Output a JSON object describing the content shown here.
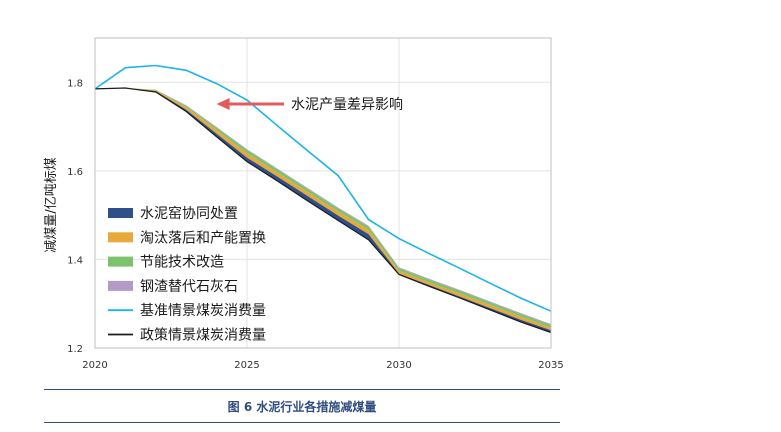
{
  "caption": "图 6  水泥行业各措施减煤量",
  "chart_data": {
    "type": "area",
    "ylabel": "减煤量/亿吨标煤",
    "xlabel": "",
    "xlim": [
      2020,
      2035
    ],
    "ylim": [
      1.2,
      1.9
    ],
    "xticks": [
      2020,
      2025,
      2030,
      2035
    ],
    "yticks": [
      1.2,
      1.4,
      1.6,
      1.8
    ],
    "grid": true,
    "legend_position": "center-left",
    "annotation": {
      "text": "水泥产量差异影响",
      "arrow_color": "#e35b5b",
      "arrow_to_year": 2024
    },
    "x": [
      2020,
      2021,
      2022,
      2023,
      2024,
      2025,
      2026,
      2027,
      2028,
      2029,
      2030,
      2031,
      2032,
      2033,
      2034,
      2035
    ],
    "series": [
      {
        "name": "基准情景煤炭消费量",
        "kind": "line",
        "color": "#1ab4e8",
        "values": [
          1.785,
          1.833,
          1.838,
          1.827,
          1.797,
          1.76,
          1.702,
          1.645,
          1.589,
          1.49,
          1.447,
          1.413,
          1.38,
          1.346,
          1.313,
          1.283
        ]
      },
      {
        "name": "钢渣替代石灰石",
        "kind": "area",
        "color": "#b49ac6",
        "values": [
          1.785,
          1.787,
          1.783,
          1.748,
          1.699,
          1.649,
          1.605,
          1.561,
          1.517,
          1.476,
          1.382,
          1.356,
          1.331,
          1.305,
          1.279,
          1.254
        ]
      },
      {
        "name": "节能技术改造",
        "kind": "area",
        "color": "#7dc36b",
        "values": [
          1.785,
          1.787,
          1.783,
          1.747,
          1.697,
          1.647,
          1.603,
          1.559,
          1.515,
          1.474,
          1.38,
          1.354,
          1.329,
          1.303,
          1.277,
          1.252
        ]
      },
      {
        "name": "淘汰落后和产能置换",
        "kind": "area",
        "color": "#e8a83a",
        "values": [
          1.785,
          1.787,
          1.782,
          1.744,
          1.692,
          1.64,
          1.596,
          1.552,
          1.508,
          1.467,
          1.374,
          1.348,
          1.323,
          1.297,
          1.271,
          1.246
        ]
      },
      {
        "name": "水泥窑协同处置",
        "kind": "area",
        "color": "#2e4f8a",
        "values": [
          1.785,
          1.787,
          1.78,
          1.738,
          1.684,
          1.63,
          1.587,
          1.543,
          1.499,
          1.457,
          1.368,
          1.342,
          1.316,
          1.29,
          1.264,
          1.24
        ]
      },
      {
        "name": "政策情景煤炭消费量",
        "kind": "line",
        "color": "#1c1c1c",
        "values": [
          1.785,
          1.787,
          1.778,
          1.734,
          1.677,
          1.621,
          1.577,
          1.532,
          1.488,
          1.444,
          1.366,
          1.339,
          1.313,
          1.286,
          1.259,
          1.235
        ]
      }
    ],
    "legend": [
      {
        "label": "水泥窑协同处置",
        "color": "#2e4f8a",
        "kind": "area"
      },
      {
        "label": "淘汰落后和产能置换",
        "color": "#e8a83a",
        "kind": "area"
      },
      {
        "label": "节能技术改造",
        "color": "#7dc36b",
        "kind": "area"
      },
      {
        "label": "钢渣替代石灰石",
        "color": "#b49ac6",
        "kind": "area"
      },
      {
        "label": "基准情景煤炭消费量",
        "color": "#1ab4e8",
        "kind": "line"
      },
      {
        "label": "政策情景煤炭消费量",
        "color": "#1c1c1c",
        "kind": "line"
      }
    ]
  }
}
